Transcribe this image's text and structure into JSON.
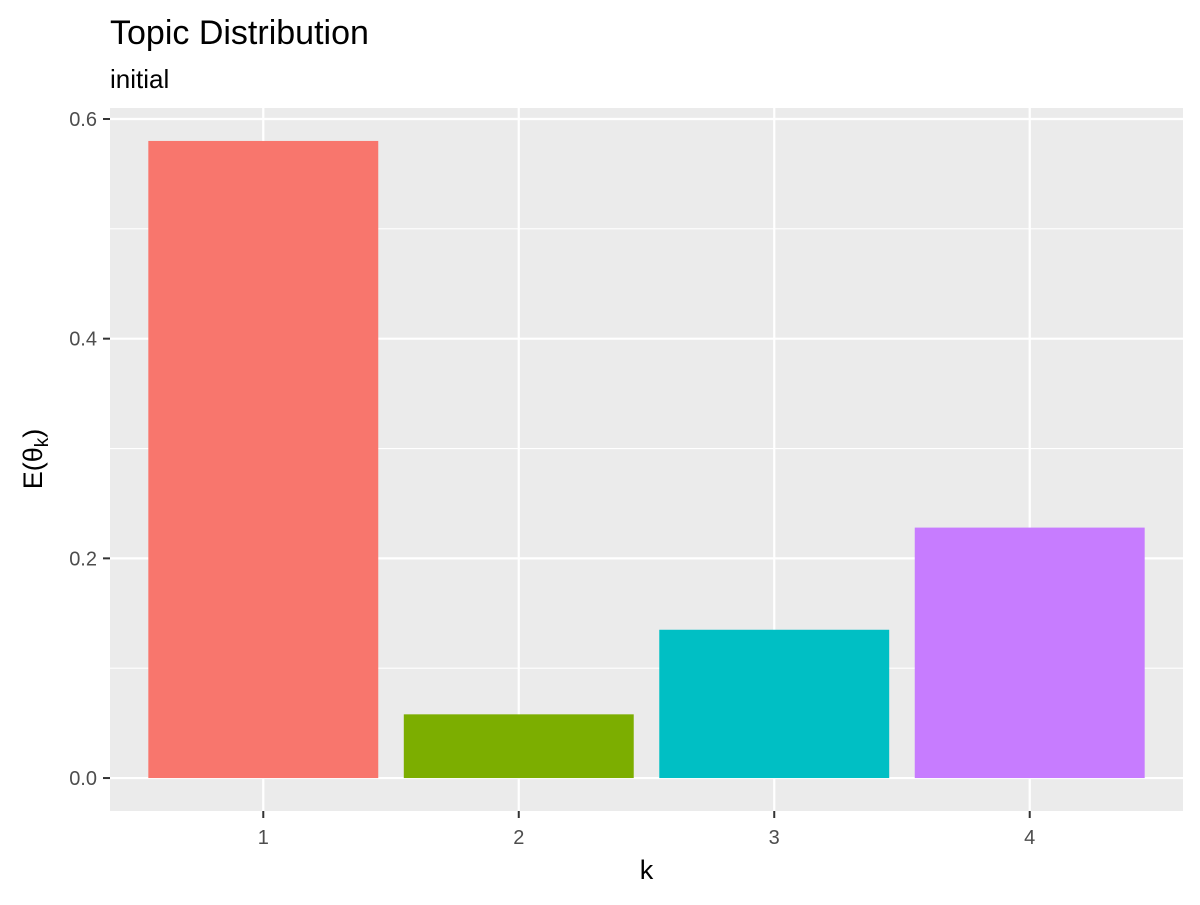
{
  "chart_data": {
    "type": "bar",
    "title": "Topic Distribution",
    "subtitle": "initial",
    "xlabel": "k",
    "ylabel_main": "E(θ",
    "ylabel_sub": "k",
    "ylabel_close": ")",
    "categories": [
      "1",
      "2",
      "3",
      "4"
    ],
    "values": [
      0.58,
      0.058,
      0.135,
      0.228
    ],
    "colors": [
      "#F8766D",
      "#7CAE00",
      "#00BFC4",
      "#C77CFF"
    ],
    "ylim": [
      -0.03,
      0.61
    ],
    "yticks": [
      0.0,
      0.2,
      0.4,
      0.6
    ],
    "ytick_labels": [
      "0.0",
      "0.2",
      "0.4",
      "0.6"
    ],
    "grid": true,
    "panel_background": "#EBEBEB",
    "legend": "none"
  }
}
